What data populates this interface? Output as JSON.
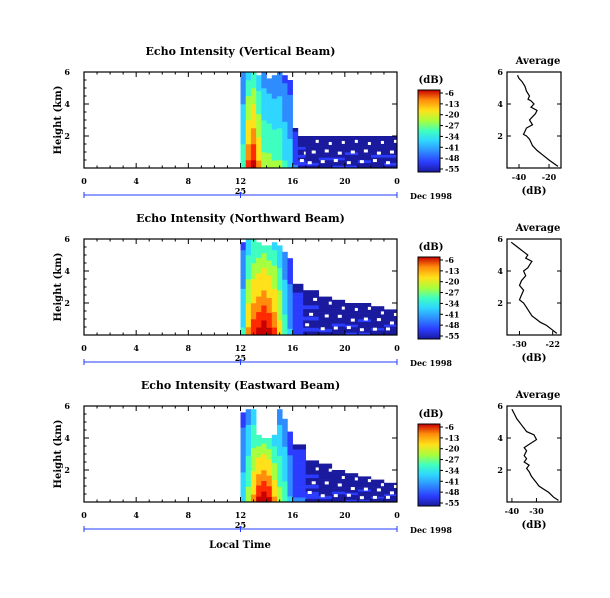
{
  "chart_data": [
    {
      "type": "heatmap",
      "title": "Echo Intensity (Vertical Beam)",
      "ylabel": "Height (km)",
      "yticks": [
        "6",
        "4",
        "2"
      ],
      "ylim": [
        0,
        6
      ],
      "xticks": [
        "0",
        "4",
        "8",
        "12",
        "16",
        "20",
        "0"
      ],
      "xlim": [
        0,
        24
      ],
      "day_marker": "25",
      "date_label": "Dec 1998",
      "colorbar_unit": "(dB)",
      "colorbar_ticks": [
        "-6",
        "-13",
        "-20",
        "-27",
        "-34",
        "-41",
        "-48",
        "-55"
      ],
      "columns": [
        {
          "t": 12.0,
          "top": 6.0,
          "level": 0.45
        },
        {
          "t": 12.4,
          "top": 6.0,
          "level": 0.8
        },
        {
          "t": 12.8,
          "top": 6.0,
          "level": 0.9
        },
        {
          "t": 13.2,
          "top": 5.8,
          "level": 0.7
        },
        {
          "t": 13.6,
          "top": 6.0,
          "level": 0.55
        },
        {
          "t": 14.0,
          "top": 5.6,
          "level": 0.55
        },
        {
          "t": 14.4,
          "top": 5.8,
          "level": 0.5
        },
        {
          "t": 14.8,
          "top": 6.0,
          "level": 0.5
        },
        {
          "t": 15.2,
          "top": 5.8,
          "level": 0.4
        },
        {
          "t": 15.6,
          "top": 5.5,
          "level": 0.35
        },
        {
          "t": 16.0,
          "top": 2.5,
          "level": 0.2
        },
        {
          "t": 16.4,
          "top": 2.0,
          "level": 0.12
        },
        {
          "t": 17.0,
          "top": 2.0,
          "level": 0.08
        },
        {
          "t": 18.0,
          "top": 2.0,
          "level": 0.08
        },
        {
          "t": 19.0,
          "top": 2.0,
          "level": 0.08
        },
        {
          "t": 20.0,
          "top": 2.0,
          "level": 0.08
        },
        {
          "t": 21.0,
          "top": 2.0,
          "level": 0.08
        },
        {
          "t": 22.0,
          "top": 2.0,
          "level": 0.08
        },
        {
          "t": 23.0,
          "top": 2.0,
          "level": 0.08
        }
      ]
    },
    {
      "type": "heatmap",
      "title": "Echo Intensity (Northward Beam)",
      "ylabel": "Height (km)",
      "yticks": [
        "6",
        "4",
        "2"
      ],
      "ylim": [
        0,
        6
      ],
      "xticks": [
        "0",
        "4",
        "8",
        "12",
        "16",
        "20",
        "0"
      ],
      "xlim": [
        0,
        24
      ],
      "day_marker": "25",
      "date_label": "Dec 1998",
      "colorbar_unit": "(dB)",
      "colorbar_ticks": [
        "-6",
        "-13",
        "-20",
        "-27",
        "-34",
        "-41",
        "-48",
        "-55"
      ],
      "columns": [
        {
          "t": 12.0,
          "top": 5.8,
          "level": 0.4
        },
        {
          "t": 12.4,
          "top": 6.0,
          "level": 0.7
        },
        {
          "t": 12.8,
          "top": 6.0,
          "level": 0.85
        },
        {
          "t": 13.2,
          "top": 5.8,
          "level": 0.9
        },
        {
          "t": 13.6,
          "top": 5.6,
          "level": 0.95
        },
        {
          "t": 14.0,
          "top": 5.6,
          "level": 0.9
        },
        {
          "t": 14.4,
          "top": 5.8,
          "level": 0.8
        },
        {
          "t": 14.8,
          "top": 5.6,
          "level": 0.65
        },
        {
          "t": 15.2,
          "top": 5.2,
          "level": 0.45
        },
        {
          "t": 15.6,
          "top": 4.8,
          "level": 0.3
        },
        {
          "t": 16.0,
          "top": 3.2,
          "level": 0.18
        },
        {
          "t": 16.8,
          "top": 2.8,
          "level": 0.1
        },
        {
          "t": 18.0,
          "top": 2.4,
          "level": 0.08
        },
        {
          "t": 19.0,
          "top": 2.2,
          "level": 0.08
        },
        {
          "t": 20.0,
          "top": 2.0,
          "level": 0.08
        },
        {
          "t": 21.0,
          "top": 2.0,
          "level": 0.08
        },
        {
          "t": 22.0,
          "top": 1.8,
          "level": 0.08
        },
        {
          "t": 23.0,
          "top": 1.6,
          "level": 0.08
        }
      ]
    },
    {
      "type": "heatmap",
      "title": "Echo Intensity (Eastward Beam)",
      "ylabel": "Height (km)",
      "yticks": [
        "6",
        "4",
        "2"
      ],
      "ylim": [
        0,
        6
      ],
      "xticks": [
        "0",
        "4",
        "8",
        "12",
        "16",
        "20",
        "0"
      ],
      "xlim": [
        0,
        24
      ],
      "day_marker": "25",
      "date_label": "Dec 1998",
      "xlabel": "Local Time",
      "colorbar_unit": "(dB)",
      "colorbar_ticks": [
        "-6",
        "-13",
        "-20",
        "-27",
        "-34",
        "-41",
        "-48",
        "-55"
      ],
      "columns": [
        {
          "t": 12.0,
          "top": 5.6,
          "level": 0.35
        },
        {
          "t": 12.4,
          "top": 5.8,
          "level": 0.55
        },
        {
          "t": 12.8,
          "top": 5.8,
          "level": 0.7
        },
        {
          "t": 13.2,
          "top": 4.2,
          "level": 0.9
        },
        {
          "t": 13.6,
          "top": 4.0,
          "level": 0.95
        },
        {
          "t": 14.0,
          "top": 4.0,
          "level": 0.9
        },
        {
          "t": 14.4,
          "top": 4.2,
          "level": 0.7
        },
        {
          "t": 14.8,
          "top": 5.8,
          "level": 0.55
        },
        {
          "t": 15.2,
          "top": 5.2,
          "level": 0.45
        },
        {
          "t": 15.6,
          "top": 4.4,
          "level": 0.3
        },
        {
          "t": 16.0,
          "top": 3.6,
          "level": 0.2
        },
        {
          "t": 17.0,
          "top": 2.6,
          "level": 0.12
        },
        {
          "t": 18.0,
          "top": 2.4,
          "level": 0.08
        },
        {
          "t": 19.0,
          "top": 2.0,
          "level": 0.08
        },
        {
          "t": 20.0,
          "top": 1.8,
          "level": 0.08
        },
        {
          "t": 21.0,
          "top": 1.6,
          "level": 0.08
        },
        {
          "t": 22.0,
          "top": 1.4,
          "level": 0.08
        },
        {
          "t": 23.0,
          "top": 1.2,
          "level": 0.08
        }
      ]
    },
    {
      "type": "line",
      "title": "Average",
      "ylabel": "",
      "xlabel": "(dB)",
      "xticks": [
        "-40",
        "-20"
      ],
      "xlim": [
        -48,
        -12
      ],
      "ylim": [
        0,
        6
      ],
      "yticks": [
        "6",
        "4",
        "2"
      ],
      "series": [
        {
          "x": [
            -41,
            -40,
            -38,
            -36,
            -35,
            -33,
            -34,
            -32,
            -30,
            -32,
            -28,
            -29,
            -31,
            -33,
            -31,
            -35,
            -36,
            -37,
            -35,
            -33,
            -32,
            -31,
            -28,
            -24,
            -20,
            -17,
            -14
          ],
          "y": [
            5.8,
            5.6,
            5.4,
            5.1,
            4.8,
            4.5,
            4.3,
            4.2,
            4.0,
            3.8,
            3.6,
            3.4,
            3.2,
            3.0,
            2.7,
            2.5,
            2.3,
            2.1,
            2.0,
            1.8,
            1.6,
            1.4,
            1.1,
            0.8,
            0.5,
            0.3,
            0.1
          ]
        }
      ]
    },
    {
      "type": "line",
      "title": "Average",
      "ylabel": "",
      "xlabel": "(dB)",
      "xticks": [
        "-30",
        "-22"
      ],
      "xlim": [
        -33,
        -20
      ],
      "ylim": [
        0,
        6
      ],
      "yticks": [
        "6",
        "4",
        "2"
      ],
      "series": [
        {
          "x": [
            -32,
            -31,
            -30,
            -29,
            -28,
            -28.5,
            -27,
            -27.5,
            -28,
            -29,
            -28.5,
            -29.5,
            -30,
            -29,
            -29.5,
            -30,
            -29,
            -28.5,
            -28,
            -27.5,
            -27,
            -26,
            -25,
            -23.5,
            -22,
            -21
          ],
          "y": [
            5.8,
            5.6,
            5.4,
            5.2,
            5.0,
            4.8,
            4.6,
            4.4,
            4.2,
            4.0,
            3.7,
            3.4,
            3.1,
            2.8,
            2.5,
            2.2,
            2.0,
            1.8,
            1.6,
            1.4,
            1.2,
            1.0,
            0.8,
            0.6,
            0.3,
            0.1
          ]
        }
      ]
    },
    {
      "type": "line",
      "title": "Average",
      "ylabel": "",
      "xlabel": "(dB)",
      "xticks": [
        "-40",
        "-30"
      ],
      "xlim": [
        -42,
        -20
      ],
      "ylim": [
        0,
        6
      ],
      "yticks": [
        "6",
        "4",
        "2"
      ],
      "series": [
        {
          "x": [
            -40,
            -39,
            -38,
            -37,
            -36,
            -35,
            -34,
            -31,
            -30,
            -33,
            -35,
            -34,
            -35,
            -34,
            -35,
            -33,
            -34,
            -33,
            -32,
            -31,
            -30,
            -29,
            -27,
            -25,
            -23,
            -21
          ],
          "y": [
            5.8,
            5.5,
            5.2,
            5.0,
            4.8,
            4.6,
            4.4,
            4.2,
            3.9,
            3.6,
            3.4,
            3.2,
            2.9,
            2.7,
            2.5,
            2.3,
            2.1,
            1.9,
            1.6,
            1.4,
            1.2,
            1.0,
            0.8,
            0.6,
            0.3,
            0.1
          ]
        }
      ]
    }
  ],
  "colors": {
    "jet": [
      "#1a1a9e",
      "#2b3cff",
      "#2f8cff",
      "#2fd6ff",
      "#3fffc0",
      "#a6ff3f",
      "#ffe11a",
      "#ff8c0a",
      "#ff2a00",
      "#c80000"
    ],
    "axis": "#000000",
    "time_axis": "#1f3cff"
  }
}
